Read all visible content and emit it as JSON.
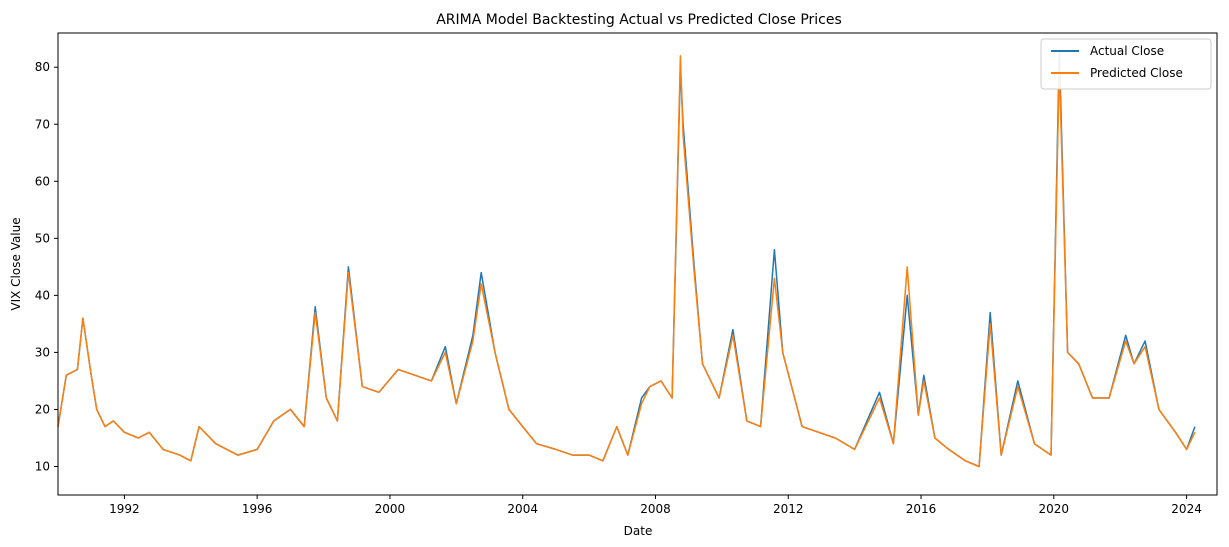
{
  "chart_data": {
    "type": "line",
    "title": "ARIMA Model Backtesting Actual vs Predicted Close Prices",
    "xlabel": "Date",
    "ylabel": "VIX Close Value",
    "xlim": [
      "1990-01",
      "2024-12"
    ],
    "ylim": [
      5,
      86
    ],
    "x_ticks": [
      "1992",
      "1996",
      "2000",
      "2004",
      "2008",
      "2012",
      "2016",
      "2020",
      "2024"
    ],
    "y_ticks": [
      10,
      20,
      30,
      40,
      50,
      60,
      70,
      80
    ],
    "grid": false,
    "legend_position": "top-right",
    "colors": {
      "actual": "#1f77b4",
      "predicted": "#ff7f0e"
    },
    "x": [
      "1990-01",
      "1990-04",
      "1990-08",
      "1990-10",
      "1991-01",
      "1991-03",
      "1991-06",
      "1991-09",
      "1992-01",
      "1992-06",
      "1992-10",
      "1993-03",
      "1993-09",
      "1994-01",
      "1994-04",
      "1994-10",
      "1995-06",
      "1996-01",
      "1996-07",
      "1997-01",
      "1997-06",
      "1997-10",
      "1998-02",
      "1998-06",
      "1998-10",
      "1999-03",
      "1999-09",
      "2000-04",
      "2000-10",
      "2001-04",
      "2001-09",
      "2002-01",
      "2002-07",
      "2002-10",
      "2003-03",
      "2003-08",
      "2004-01",
      "2004-06",
      "2005-01",
      "2005-07",
      "2006-01",
      "2006-06",
      "2006-11",
      "2007-03",
      "2007-08",
      "2007-11",
      "2008-03",
      "2008-07",
      "2008-10",
      "2008-11",
      "2009-03",
      "2009-06",
      "2009-12",
      "2010-05",
      "2010-10",
      "2011-03",
      "2011-08",
      "2011-11",
      "2012-06",
      "2012-12",
      "2013-06",
      "2014-01",
      "2014-10",
      "2015-03",
      "2015-08",
      "2015-12",
      "2016-02",
      "2016-06",
      "2016-11",
      "2017-05",
      "2017-10",
      "2018-02",
      "2018-06",
      "2018-12",
      "2019-06",
      "2019-12",
      "2020-03",
      "2020-06",
      "2020-10",
      "2021-03",
      "2021-09",
      "2022-03",
      "2022-06",
      "2022-10",
      "2023-03",
      "2023-09",
      "2024-01",
      "2024-04"
    ],
    "series": [
      {
        "name": "Actual Close",
        "values": [
          17,
          26,
          27,
          36,
          26,
          20,
          17,
          18,
          16,
          15,
          16,
          13,
          12,
          11,
          17,
          14,
          12,
          13,
          18,
          20,
          17,
          38,
          22,
          18,
          45,
          24,
          23,
          27,
          26,
          25,
          31,
          21,
          33,
          44,
          30,
          20,
          17,
          14,
          13,
          12,
          12,
          11,
          17,
          12,
          22,
          24,
          25,
          22,
          80,
          70,
          45,
          28,
          22,
          34,
          18,
          17,
          48,
          30,
          17,
          16,
          15,
          13,
          23,
          14,
          40,
          19,
          26,
          15,
          13,
          11,
          10,
          37,
          12,
          25,
          14,
          12,
          83,
          30,
          28,
          22,
          22,
          33,
          28,
          32,
          20,
          16,
          13,
          17
        ]
      },
      {
        "name": "Predicted Close",
        "values": [
          17,
          26,
          27,
          36,
          26,
          20,
          17,
          18,
          16,
          15,
          16,
          13,
          12,
          11,
          17,
          14,
          12,
          13,
          18,
          20,
          17,
          37,
          22,
          18,
          44,
          24,
          23,
          27,
          26,
          25,
          30,
          21,
          32,
          42,
          30,
          20,
          17,
          14,
          13,
          12,
          12,
          11,
          17,
          12,
          21,
          24,
          25,
          22,
          82,
          68,
          44,
          28,
          22,
          33,
          18,
          17,
          43,
          30,
          17,
          16,
          15,
          13,
          22,
          14,
          45,
          19,
          25,
          15,
          13,
          11,
          10,
          35,
          12,
          24,
          14,
          12,
          80,
          30,
          28,
          22,
          22,
          32,
          28,
          31,
          20,
          16,
          13,
          16
        ]
      }
    ]
  }
}
